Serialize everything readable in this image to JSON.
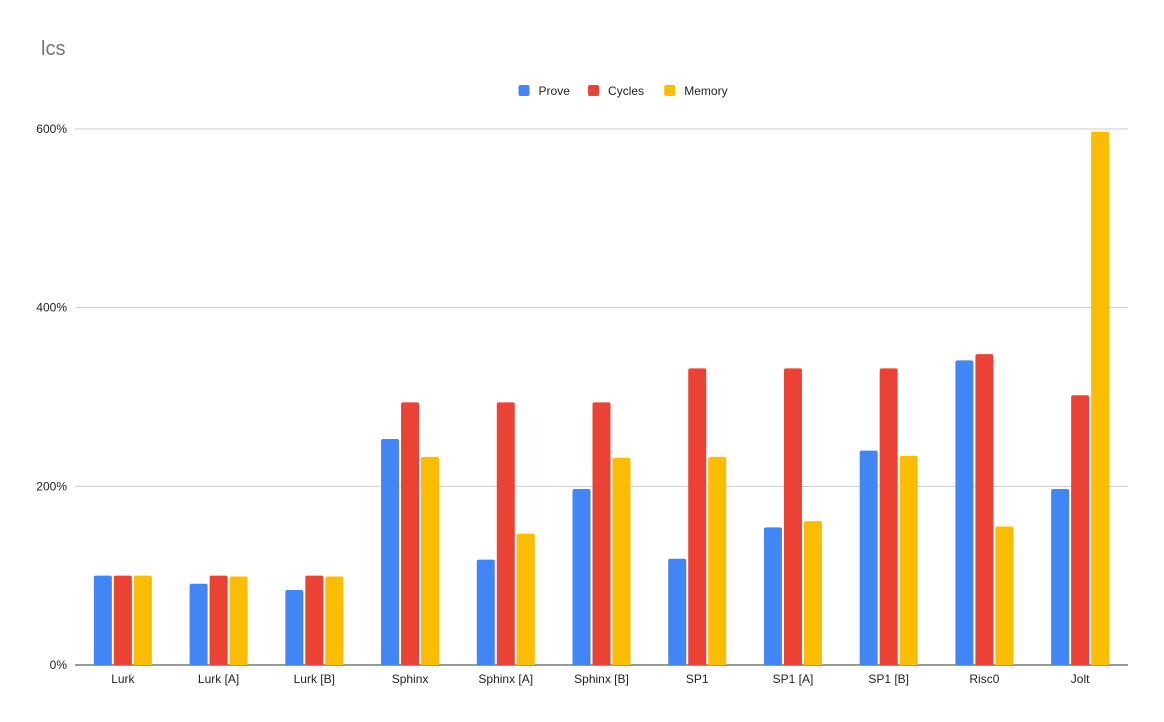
{
  "chart_data": {
    "type": "bar",
    "title": "lcs",
    "xlabel": "",
    "ylabel": "",
    "categories": [
      "Lurk",
      "Lurk [A]",
      "Lurk [B]",
      "Sphinx",
      "Sphinx [A]",
      "Sphinx [B]",
      "SP1",
      "SP1 [A]",
      "SP1 [B]",
      "Risc0",
      "Jolt"
    ],
    "series": [
      {
        "name": "Prove",
        "color": "#4285F4",
        "values": [
          100,
          91,
          84,
          253,
          118,
          197,
          119,
          154,
          240,
          341,
          197
        ]
      },
      {
        "name": "Cycles",
        "color": "#EA4335",
        "values": [
          100,
          100,
          100,
          294,
          294,
          294,
          332,
          332,
          332,
          348,
          302
        ]
      },
      {
        "name": "Memory",
        "color": "#FBBC04",
        "values": [
          100,
          99,
          99,
          233,
          147,
          232,
          233,
          161,
          234,
          155,
          597
        ]
      }
    ],
    "ylim": [
      0,
      600
    ],
    "yticks": [
      0,
      200,
      400,
      600
    ],
    "ytick_labels": [
      "0%",
      "200%",
      "400%",
      "600%"
    ],
    "grid": true,
    "legend_position": "top-center"
  }
}
